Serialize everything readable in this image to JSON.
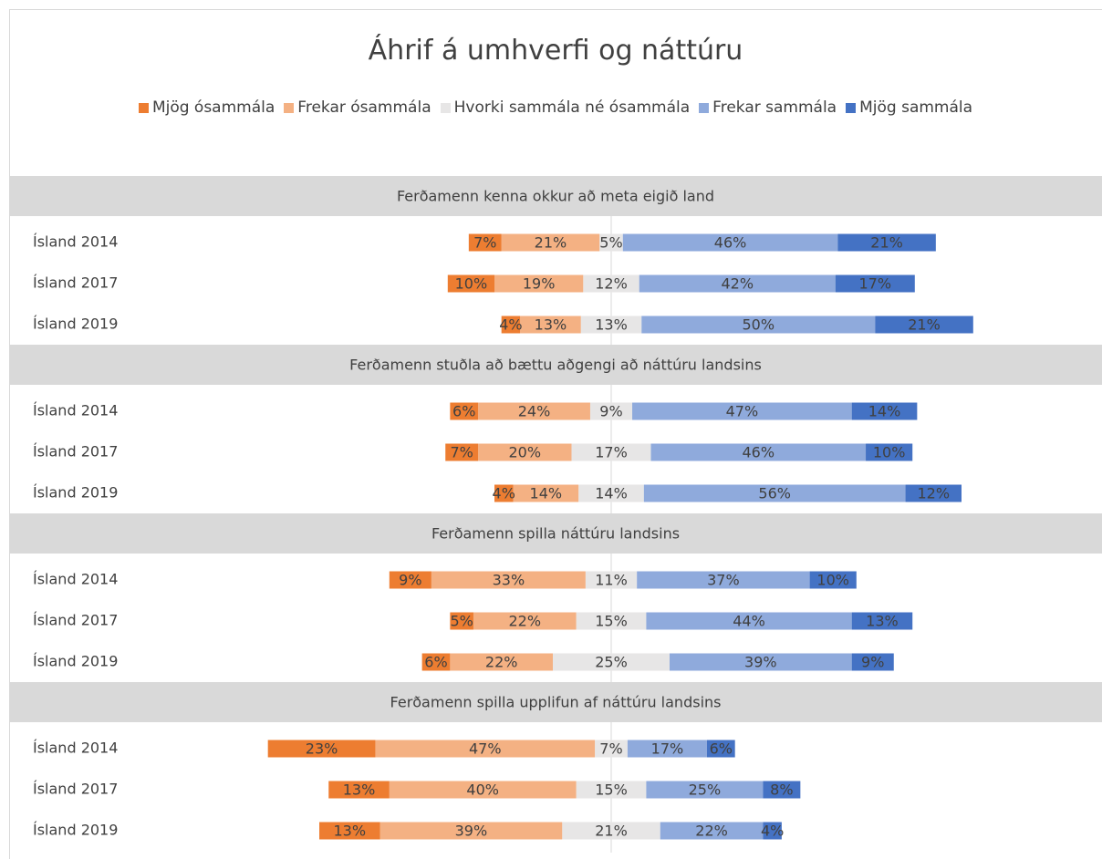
{
  "chart_data": {
    "type": "diverging_bar",
    "title": "Áhrif á umhverfi og náttúru",
    "series": [
      {
        "name": "Mjög ósammála",
        "color": "#ed7d31"
      },
      {
        "name": "Frekar ósammála",
        "color": "#f4b183"
      },
      {
        "name": "Hvorki sammála né ósammála",
        "color": "#e7e6e6"
      },
      {
        "name": "Frekar sammála",
        "color": "#8faadc"
      },
      {
        "name": "Mjög sammála",
        "color": "#4472c4"
      }
    ],
    "panels": [
      {
        "title": "Ferðamenn kenna okkur að meta eigið land",
        "categories": [
          "Ísland 2014",
          "Ísland 2017",
          "Ísland 2019"
        ],
        "values": [
          [
            7,
            21,
            5,
            46,
            21
          ],
          [
            10,
            19,
            12,
            42,
            17
          ],
          [
            4,
            13,
            13,
            50,
            21
          ]
        ],
        "value_labels": [
          [
            "7%",
            "21%",
            "5%",
            "46%",
            "21%"
          ],
          [
            "10%",
            "19%",
            "12%",
            "42%",
            "17%"
          ],
          [
            "4%",
            "13%",
            "13%",
            "50%",
            "21%"
          ]
        ]
      },
      {
        "title": "Ferðamenn stuðla að bættu aðgengi að náttúru landsins",
        "categories": [
          "Ísland 2014",
          "Ísland 2017",
          "Ísland 2019"
        ],
        "values": [
          [
            6,
            24,
            9,
            47,
            14
          ],
          [
            7,
            20,
            17,
            46,
            10
          ],
          [
            4,
            14,
            14,
            56,
            12
          ]
        ],
        "value_labels": [
          [
            "6%",
            "24%",
            "9%",
            "47%",
            "14%"
          ],
          [
            "7%",
            "20%",
            "17%",
            "46%",
            "10%"
          ],
          [
            "4%",
            "14%",
            "14%",
            "56%",
            "12%"
          ]
        ]
      },
      {
        "title": "Ferðamenn spilla náttúru landsins",
        "categories": [
          "Ísland 2014",
          "Ísland 2017",
          "Ísland 2019"
        ],
        "values": [
          [
            9,
            33,
            11,
            37,
            10
          ],
          [
            5,
            22,
            15,
            44,
            13
          ],
          [
            6,
            22,
            25,
            39,
            9
          ]
        ],
        "value_labels": [
          [
            "9%",
            "33%",
            "11%",
            "37%",
            "10%"
          ],
          [
            "5%",
            "22%",
            "15%",
            "44%",
            "13%"
          ],
          [
            "6%",
            "22%",
            "25%",
            "39%",
            "9%"
          ]
        ]
      },
      {
        "title": "Ferðamenn spilla upplifun af náttúru landsins",
        "categories": [
          "Ísland 2014",
          "Ísland 2017",
          "Ísland 2019"
        ],
        "values": [
          [
            23,
            47,
            7,
            17,
            6
          ],
          [
            13,
            40,
            15,
            25,
            8
          ],
          [
            13,
            39,
            21,
            22,
            4
          ]
        ],
        "value_labels": [
          [
            "23%",
            "47%",
            "7%",
            "17%",
            "6%"
          ],
          [
            "13%",
            "40%",
            "15%",
            "25%",
            "8%"
          ],
          [
            "13%",
            "39%",
            "21%",
            "22%",
            "4%"
          ]
        ]
      }
    ]
  }
}
